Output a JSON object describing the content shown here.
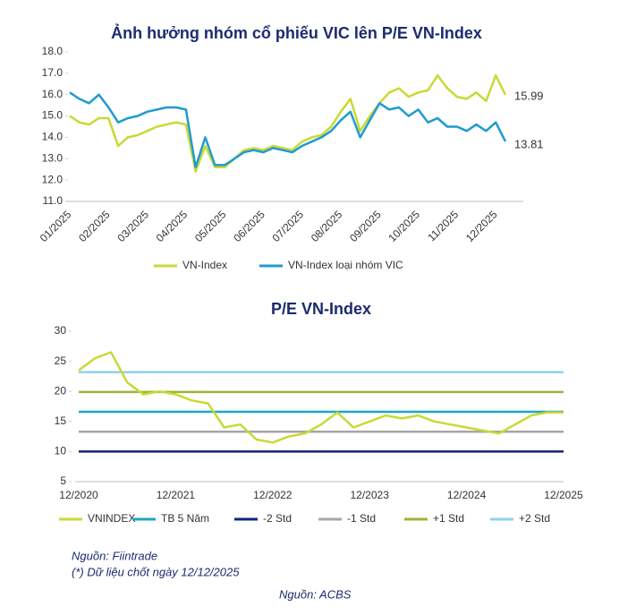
{
  "chart_data": [
    {
      "type": "line",
      "title": "Ảnh hưởng nhóm cổ phiếu VIC lên P/E VN-Index",
      "categories": [
        "01/2025",
        null,
        null,
        null,
        "02/2025",
        null,
        null,
        null,
        "03/2025",
        null,
        null,
        null,
        "04/2025",
        null,
        null,
        null,
        "05/2025",
        null,
        null,
        null,
        "06/2025",
        null,
        null,
        null,
        "07/2025",
        null,
        null,
        null,
        "08/2025",
        null,
        null,
        null,
        "09/2025",
        null,
        null,
        null,
        "10/2025",
        null,
        null,
        null,
        "11/2025",
        null,
        null,
        null,
        "12/2025",
        null
      ],
      "series": [
        {
          "name": "VN-Index",
          "color": "#c9d935",
          "values": [
            15.0,
            14.7,
            14.6,
            14.9,
            14.9,
            13.6,
            14.0,
            14.1,
            14.3,
            14.5,
            14.6,
            14.7,
            14.6,
            12.4,
            13.6,
            12.6,
            12.6,
            13.0,
            13.4,
            13.5,
            13.4,
            13.6,
            13.5,
            13.4,
            13.8,
            14.0,
            14.1,
            14.5,
            15.2,
            15.8,
            14.3,
            15.0,
            15.6,
            16.1,
            16.3,
            15.9,
            16.1,
            16.2,
            16.9,
            16.3,
            15.9,
            15.8,
            16.1,
            15.7,
            16.9,
            15.99
          ]
        },
        {
          "name": "VN-Index loại nhóm VIC",
          "color": "#1f9bd0",
          "values": [
            16.1,
            15.8,
            15.6,
            16.0,
            15.4,
            14.7,
            14.9,
            15.0,
            15.2,
            15.3,
            15.4,
            15.4,
            15.3,
            12.6,
            14.0,
            12.7,
            12.7,
            13.0,
            13.3,
            13.4,
            13.3,
            13.5,
            13.4,
            13.3,
            13.6,
            13.8,
            14.0,
            14.3,
            14.8,
            15.2,
            14.0,
            14.8,
            15.6,
            15.3,
            15.4,
            15.0,
            15.3,
            14.7,
            14.9,
            14.5,
            14.5,
            14.3,
            14.6,
            14.3,
            14.7,
            13.81
          ]
        }
      ],
      "ylim": [
        11,
        18
      ],
      "yticks": [
        {
          "value": 11,
          "label": "11.0"
        },
        {
          "value": 12,
          "label": "12.0"
        },
        {
          "value": 13,
          "label": "13.0"
        },
        {
          "value": 14,
          "label": "14.0"
        },
        {
          "value": 15,
          "label": "15.0"
        },
        {
          "value": 16,
          "label": "16.0"
        },
        {
          "value": 17,
          "label": "17.0"
        },
        {
          "value": 18,
          "label": "18.0"
        }
      ],
      "end_labels": true,
      "rotate_x_labels": true,
      "grid": false
    },
    {
      "type": "line",
      "title": "P/E VN-Index",
      "categories": [
        "12/2020",
        null,
        null,
        null,
        null,
        null,
        "12/2021",
        null,
        null,
        null,
        null,
        null,
        "12/2022",
        null,
        null,
        null,
        null,
        null,
        "12/2023",
        null,
        null,
        null,
        null,
        null,
        "12/2024",
        null,
        null,
        null,
        null,
        null,
        "12/2025"
      ],
      "series": [
        {
          "name": "VNINDEX",
          "color": "#c9d935",
          "values": [
            23.5,
            25.5,
            26.5,
            21.5,
            19.5,
            20.0,
            19.5,
            18.5,
            18.0,
            14.0,
            14.5,
            12.0,
            11.5,
            12.5,
            13.0,
            14.5,
            16.5,
            14.0,
            15.0,
            16.0,
            15.5,
            16.0,
            15.0,
            14.5,
            14.0,
            13.5,
            13.0,
            14.5,
            16.0,
            16.5,
            16.5
          ]
        }
      ],
      "hlines": [
        {
          "name": "TB 5 Năm",
          "color": "#1aa7c9",
          "value": 16.6
        },
        {
          "name": "-2 Std",
          "color": "#12237a",
          "value": 10.0
        },
        {
          "name": "-1 Std",
          "color": "#a6a6a6",
          "value": 13.3
        },
        {
          "name": "+1 Std",
          "color": "#9bb43a",
          "value": 19.9
        },
        {
          "name": "+2 Std",
          "color": "#8fd3ee",
          "value": 23.2
        }
      ],
      "ylim": [
        5,
        30
      ],
      "yticks": [
        5,
        10,
        15,
        20,
        25,
        30
      ],
      "end_labels": false,
      "rotate_x_labels": false,
      "grid": false
    }
  ],
  "footer": {
    "source": "Nguồn: Fiintrade",
    "note": "(*) Dữ liệu chốt ngày 12/12/2025",
    "credit": "Nguồn: ACBS"
  }
}
